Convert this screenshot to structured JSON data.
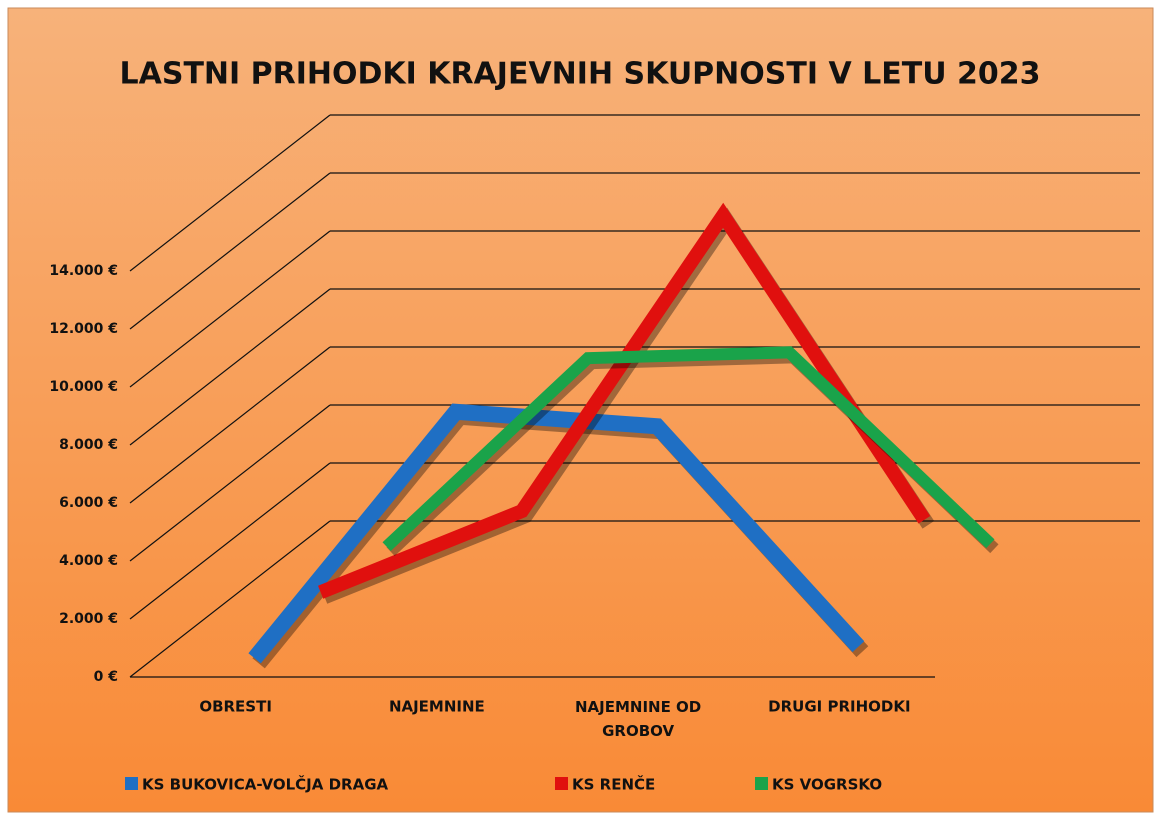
{
  "chart_data": {
    "type": "line3d",
    "title": "LASTNI PRIHODKI KRAJEVNIH SKUPNOSTI V LETU 2023",
    "categories": [
      "OBRESTI",
      "NAJEMNINE",
      "NAJEMNINE OD GROBOV",
      "DRUGI PRIHODKI"
    ],
    "series": [
      {
        "name": "KS BUKOVICA-VOLČJA DRAGA",
        "color": "#1f6fc4",
        "values": [
          0,
          8500,
          8000,
          400
        ]
      },
      {
        "name": "KS RENČE",
        "color": "#e0100e",
        "values": [
          500,
          3300,
          13500,
          3000
        ]
      },
      {
        "name": "KS VOGRSKO",
        "color": "#1aa34a",
        "values": [
          300,
          6800,
          7000,
          400
        ]
      }
    ],
    "ylim": [
      0,
      14000
    ],
    "yticks": [
      {
        "value": 0,
        "label": "0 €"
      },
      {
        "value": 2000,
        "label": "2.000 €"
      },
      {
        "value": 4000,
        "label": "4.000 €"
      },
      {
        "value": 6000,
        "label": "6.000 €"
      },
      {
        "value": 8000,
        "label": "8.000 €"
      },
      {
        "value": 10000,
        "label": "10.000 €"
      },
      {
        "value": 12000,
        "label": "12.000 €"
      },
      {
        "value": 14000,
        "label": "14.000 €"
      }
    ],
    "grid": true
  }
}
